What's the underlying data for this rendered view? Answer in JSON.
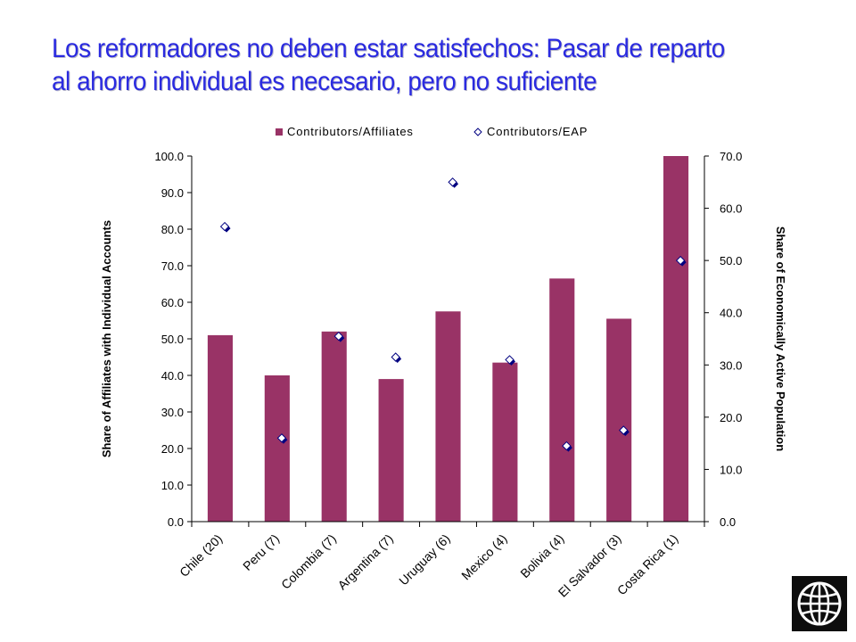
{
  "title": {
    "line1": "Los reformadores no deben estar satisfechos: Pasar de reparto",
    "line2": "al ahorro individual es necesario, pero no suficiente"
  },
  "chart_data": {
    "type": "bar",
    "categories": [
      "Chile (20)",
      "Peru (7)",
      "Colombia (7)",
      "Argentina (7)",
      "Uruguay (6)",
      "Mexico (4)",
      "Bolivia (4)",
      "El Salvador (3)",
      "Costa Rica (1)"
    ],
    "series": [
      {
        "name": "Contributors/Affiliates",
        "type": "bar",
        "axis": "left",
        "color": "#993366",
        "values": [
          51,
          40,
          52,
          39,
          57.5,
          43.5,
          66.5,
          55.5,
          100
        ]
      },
      {
        "name": "Contributors/EAP",
        "type": "scatter",
        "axis": "right",
        "marker": "diamond",
        "values": [
          56.5,
          16,
          35.5,
          31.5,
          65,
          31,
          14.5,
          17.5,
          50
        ]
      }
    ],
    "ylabel": "Share of Affiliates with Individual Accounts",
    "ylabel_right": "Share of Economically Active Population",
    "ylim": [
      0,
      100
    ],
    "ylim_right": [
      0,
      70
    ],
    "yticks": [
      "0.0",
      "10.0",
      "20.0",
      "30.0",
      "40.0",
      "50.0",
      "60.0",
      "70.0",
      "80.0",
      "90.0",
      "100.0"
    ],
    "yticks_right": [
      "0.0",
      "10.0",
      "20.0",
      "30.0",
      "40.0",
      "50.0",
      "60.0",
      "70.0"
    ],
    "legend_position": "top",
    "grid": false
  },
  "logo": {
    "icon": "globe-icon"
  }
}
